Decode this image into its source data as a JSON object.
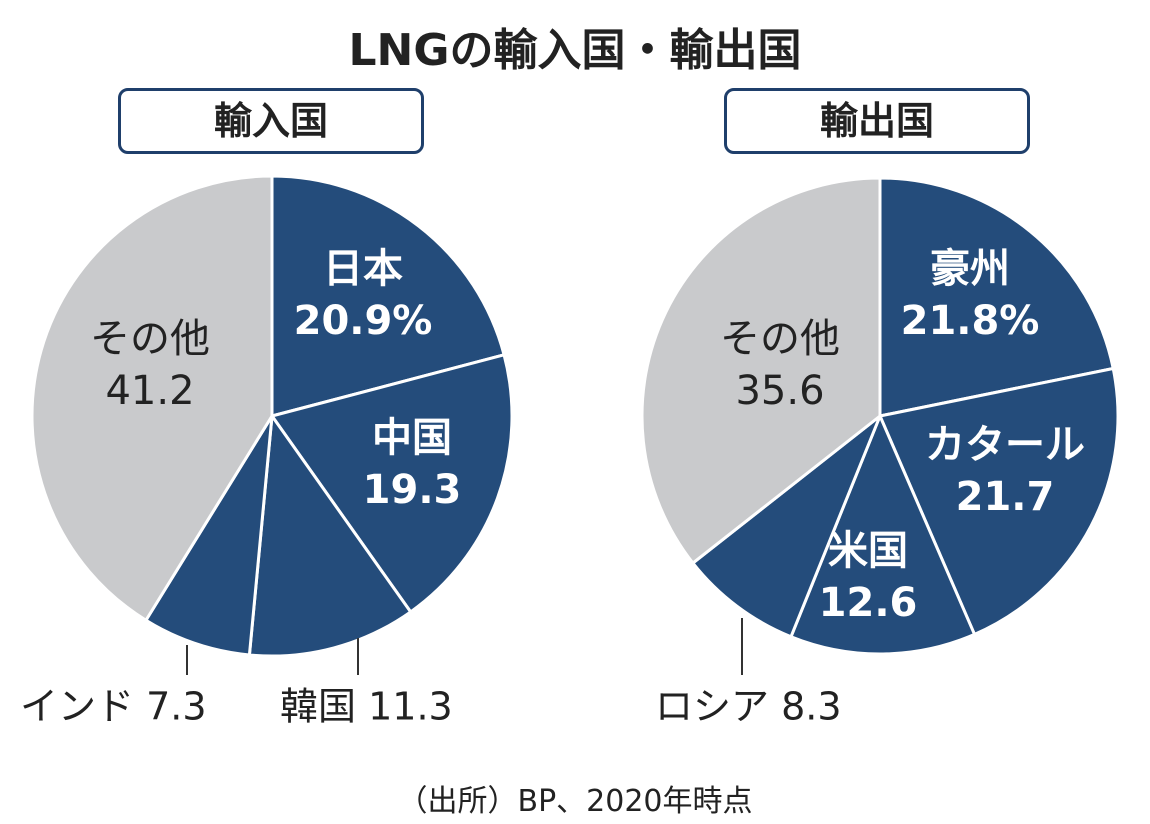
{
  "title": "LNGの輸入国・輸出国",
  "source": "（出所）BP、2020年時点",
  "colors": {
    "main": "#244c7b",
    "other": "#c9cacc",
    "border": "#1f3f6b"
  },
  "chart_data": [
    {
      "type": "pie",
      "title": "輸入国",
      "unit": "%",
      "start": "top, clockwise",
      "slices": [
        {
          "label": "日本",
          "value": 20.9,
          "text": "20.9%",
          "color": "#244c7b"
        },
        {
          "label": "中国",
          "value": 19.3,
          "text": "19.3",
          "color": "#244c7b"
        },
        {
          "label": "韓国",
          "value": 11.3,
          "text": "11.3",
          "color": "#244c7b"
        },
        {
          "label": "インド",
          "value": 7.3,
          "text": "7.3",
          "color": "#244c7b"
        },
        {
          "label": "その他",
          "value": 41.2,
          "text": "41.2",
          "color": "#c9cacc"
        }
      ]
    },
    {
      "type": "pie",
      "title": "輸出国",
      "unit": "%",
      "start": "top, clockwise",
      "slices": [
        {
          "label": "豪州",
          "value": 21.8,
          "text": "21.8%",
          "color": "#244c7b"
        },
        {
          "label": "カタール",
          "value": 21.7,
          "text": "21.7",
          "color": "#244c7b"
        },
        {
          "label": "米国",
          "value": 12.6,
          "text": "12.6",
          "color": "#244c7b"
        },
        {
          "label": "ロシア",
          "value": 8.3,
          "text": "8.3",
          "color": "#244c7b"
        },
        {
          "label": "その他",
          "value": 35.6,
          "text": "35.6",
          "color": "#c9cacc"
        }
      ]
    }
  ]
}
